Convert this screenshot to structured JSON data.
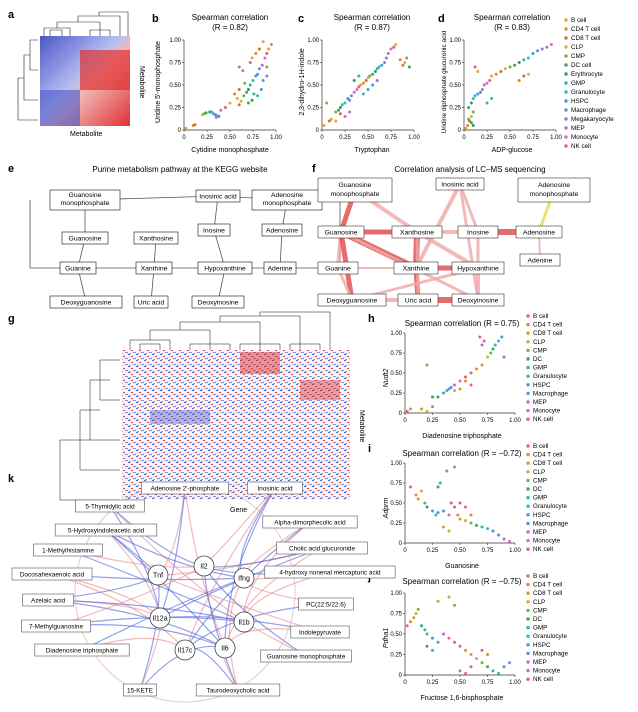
{
  "panels": {
    "a": {
      "letter": "a",
      "ylabel": "Metabolite",
      "xlabel": "Metabolite"
    },
    "b": {
      "letter": "b",
      "title": "Spearman correlation",
      "subtitle": "(R = 0.82)",
      "xlabel": "Cytidine monophosphate",
      "ylabel": "Uridine 5'-monophosphate"
    },
    "c": {
      "letter": "c",
      "title": "Spearman correlation",
      "subtitle": "(R = 0.87)",
      "xlabel": "Tryptophan",
      "ylabel": "2,3-dihydro-1H-indole"
    },
    "d": {
      "letter": "d",
      "title": "Spearman correlation",
      "subtitle": "(R = 0.83)",
      "xlabel": "ADP-glucose",
      "ylabel": "Uridine diphosphate glucuronic acid"
    },
    "e": {
      "letter": "e",
      "title": "Purine metabolism pathway at the KEGG website"
    },
    "f": {
      "letter": "f",
      "title": "Correlation analysis of LC–MS sequencing"
    },
    "g": {
      "letter": "g",
      "ylabel": "Metabolite",
      "xlabel": "Gene"
    },
    "h": {
      "letter": "h",
      "title": "Spearman correlation (R = 0.75)",
      "xlabel": "Diadenosine triphosphate",
      "ylabel": "Nudt2"
    },
    "i": {
      "letter": "i",
      "title": "Spearman correlation (R = −0.72)",
      "xlabel": "Guanosine",
      "ylabel": "Adprm"
    },
    "j": {
      "letter": "j",
      "title": "Spearman correlation (R = −0.75)",
      "xlabel": "Fructose 1,6-bisphosphate",
      "ylabel": "Pdha1"
    },
    "k": {
      "letter": "k"
    }
  },
  "ticks": {
    "b": {
      "x": [
        "0",
        "0.25",
        "0.50",
        "0.75",
        "1.00"
      ],
      "y": [
        "0",
        "0.25",
        "0.50",
        "0.75",
        "1.00"
      ]
    },
    "c": {
      "x": [
        "0",
        "0.25",
        "0.50",
        "0.75",
        "1.00"
      ],
      "y": [
        "0",
        "0.25",
        "0.50",
        "0.75",
        "1.00"
      ]
    },
    "d": {
      "x": [
        "0",
        "0.25",
        "0.50",
        "0.75",
        "1.00"
      ],
      "y": [
        "0",
        "0.25",
        "0.50",
        "0.75",
        "1.00"
      ]
    },
    "h": {
      "x": [
        "0",
        "0.25",
        "0.50",
        "0.75",
        "1.00"
      ],
      "y": [
        "0",
        "0.25",
        "0.50",
        "0.75",
        "1.00"
      ]
    },
    "i": {
      "x": [
        "0",
        "0.25",
        "0.50",
        "0.75",
        "1.00"
      ],
      "y": [
        "0",
        "0.25",
        "0.50",
        "0.75",
        "1.00"
      ]
    },
    "j": {
      "x": [
        "0",
        "0.25",
        "0.50",
        "0.75",
        "1.00"
      ],
      "y": [
        "0",
        "0.25",
        "0.50",
        "0.75",
        "1.00"
      ]
    }
  },
  "legend_bd": [
    "B cell",
    "CD4 T cell",
    "CD8 T cell",
    "CLP",
    "CMP",
    "DC cell",
    "Erythrocyte",
    "GMP",
    "Granulocyte",
    "HSPC",
    "Macrophage",
    "Megakaryocyte",
    "MEP",
    "Monocyte",
    "NK cell"
  ],
  "legend_colors_bd": [
    "#e8a33c",
    "#e0882a",
    "#c9762b",
    "#d8b23a",
    "#6fb44a",
    "#3aa856",
    "#2e9a6c",
    "#39b3a3",
    "#38b6c6",
    "#3c9fd8",
    "#5f8ee0",
    "#8e7ad8",
    "#b66ed8",
    "#e06ab2",
    "#e0607a"
  ],
  "legend_hij": [
    "B cell",
    "CD4 T cell",
    "CD8 T cell",
    "CLP",
    "CMP",
    "DC",
    "GMP",
    "Granulocyte",
    "HSPC",
    "Macrophage",
    "MEP",
    "Monocyte",
    "NK cell"
  ],
  "legend_colors_hij": [
    "#e06a6a",
    "#e08a3a",
    "#d59c2e",
    "#c8b23a",
    "#6fb44a",
    "#3aa856",
    "#39b3a3",
    "#38b6c6",
    "#3c9fd8",
    "#5f8ee0",
    "#b66ed8",
    "#e06ab2",
    "#e0607a"
  ],
  "pathway_e": {
    "nodes": [
      "Guanosine monophosphate",
      "Guanosine",
      "Guanine",
      "Deoxyguanosine",
      "Xanthosine",
      "Xanthine",
      "Uric acid",
      "Inosinic acid",
      "Inosine",
      "Hypoxanthine",
      "Deoxyinosine",
      "Adenosine monophosphate",
      "Adenosine",
      "Adenine"
    ]
  },
  "network_f": {
    "nodes": [
      "Guanosine monophosphate",
      "Inosinic acid",
      "Adenosine monophosphate",
      "Guanosine",
      "Xanthosine",
      "Inosine",
      "Adenosine",
      "Guanine",
      "Xanthine",
      "Hypoxanthine",
      "Adenine",
      "Deoxyguanosine",
      "Uric acid",
      "Deoxyinosine"
    ]
  },
  "network_k": {
    "genes": [
      "Tnf",
      "Il2",
      "Ifng",
      "Il12a",
      "Il1b",
      "Il17c",
      "Il6"
    ],
    "metabolites": [
      "Adenosine 2'-phosphate",
      "Inosinic acid",
      "5-Thymidylic acid",
      "5-Hydroxyindoleacetic acid",
      "Alpha-dimorphecolic acid",
      "1-Methylhistamine",
      "Cholic acid glucuronide",
      "Docosahexaenoic acid",
      "4-hydroxy nonenal mercapturic acid",
      "Azelaic acid",
      "PC(22:5/22:6)",
      "7-Methylguanosine",
      "Indolepyruvate",
      "Diadenosine triphosphate",
      "Guanosine monophosphate",
      "15-KETE",
      "Taurodeoxycholic acid"
    ]
  },
  "chart_data": [
    {
      "panel": "b",
      "type": "scatter",
      "title": "Spearman correlation",
      "subtitle": "(R = 0.82)",
      "xlabel": "Cytidine monophosphate",
      "ylabel": "Uridine 5'-monophosphate",
      "xlim": [
        0,
        1
      ],
      "ylim": [
        0,
        1
      ],
      "points": [
        [
          0.02,
          0.02
        ],
        [
          0.1,
          0.05
        ],
        [
          0.12,
          0.06
        ],
        [
          0.2,
          0.17
        ],
        [
          0.22,
          0.18
        ],
        [
          0.24,
          0.19
        ],
        [
          0.28,
          0.2
        ],
        [
          0.3,
          0.2
        ],
        [
          0.32,
          0.18
        ],
        [
          0.34,
          0.17
        ],
        [
          0.36,
          0.16
        ],
        [
          0.38,
          0.15
        ],
        [
          0.35,
          0.14
        ],
        [
          0.4,
          0.22
        ],
        [
          0.45,
          0.25
        ],
        [
          0.5,
          0.3
        ],
        [
          0.55,
          0.4
        ],
        [
          0.6,
          0.45
        ],
        [
          0.62,
          0.32
        ],
        [
          0.65,
          0.38
        ],
        [
          0.68,
          0.42
        ],
        [
          0.7,
          0.45
        ],
        [
          0.72,
          0.5
        ],
        [
          0.75,
          0.55
        ],
        [
          0.78,
          0.6
        ],
        [
          0.8,
          0.62
        ],
        [
          0.82,
          0.68
        ],
        [
          0.85,
          0.72
        ],
        [
          0.88,
          0.8
        ],
        [
          0.9,
          0.85
        ],
        [
          0.92,
          0.9
        ],
        [
          0.95,
          0.95
        ],
        [
          0.6,
          0.28
        ],
        [
          0.58,
          0.35
        ],
        [
          0.66,
          0.52
        ],
        [
          0.7,
          0.3
        ],
        [
          0.74,
          0.33
        ],
        [
          0.76,
          0.4
        ],
        [
          0.8,
          0.38
        ],
        [
          0.84,
          0.45
        ],
        [
          0.86,
          0.55
        ],
        [
          0.9,
          0.6
        ],
        [
          0.6,
          0.7
        ],
        [
          0.64,
          0.66
        ],
        [
          0.72,
          0.75
        ],
        [
          0.74,
          0.8
        ],
        [
          0.78,
          0.85
        ],
        [
          0.82,
          0.9
        ],
        [
          0.86,
          0.98
        ],
        [
          0.9,
          0.7
        ]
      ]
    },
    {
      "panel": "c",
      "type": "scatter",
      "title": "Spearman correlation",
      "subtitle": "(R = 0.87)",
      "xlabel": "Tryptophan",
      "ylabel": "2,3-dihydro-1H-indole",
      "xlim": [
        0,
        1
      ],
      "ylim": [
        0,
        1
      ],
      "points": [
        [
          0.02,
          0.05
        ],
        [
          0.05,
          0.3
        ],
        [
          0.08,
          0.1
        ],
        [
          0.1,
          0.12
        ],
        [
          0.15,
          0.2
        ],
        [
          0.18,
          0.22
        ],
        [
          0.2,
          0.25
        ],
        [
          0.22,
          0.28
        ],
        [
          0.25,
          0.3
        ],
        [
          0.28,
          0.35
        ],
        [
          0.3,
          0.33
        ],
        [
          0.32,
          0.38
        ],
        [
          0.35,
          0.42
        ],
        [
          0.38,
          0.45
        ],
        [
          0.4,
          0.48
        ],
        [
          0.42,
          0.5
        ],
        [
          0.45,
          0.52
        ],
        [
          0.48,
          0.55
        ],
        [
          0.5,
          0.58
        ],
        [
          0.52,
          0.6
        ],
        [
          0.55,
          0.62
        ],
        [
          0.58,
          0.65
        ],
        [
          0.6,
          0.68
        ],
        [
          0.62,
          0.7
        ],
        [
          0.65,
          0.72
        ],
        [
          0.68,
          0.75
        ],
        [
          0.7,
          0.8
        ],
        [
          0.72,
          0.85
        ],
        [
          0.75,
          0.9
        ],
        [
          0.78,
          0.92
        ],
        [
          0.8,
          0.95
        ],
        [
          0.85,
          0.78
        ],
        [
          0.88,
          0.72
        ],
        [
          0.9,
          0.75
        ],
        [
          0.92,
          0.8
        ],
        [
          0.95,
          0.7
        ],
        [
          0.35,
          0.55
        ],
        [
          0.4,
          0.6
        ],
        [
          0.45,
          0.4
        ],
        [
          0.5,
          0.45
        ],
        [
          0.55,
          0.5
        ],
        [
          0.6,
          0.55
        ],
        [
          0.3,
          0.2
        ],
        [
          0.25,
          0.15
        ],
        [
          0.2,
          0.18
        ],
        [
          0.15,
          0.1
        ]
      ]
    },
    {
      "panel": "d",
      "type": "scatter",
      "title": "Spearman correlation",
      "subtitle": "(R = 0.83)",
      "xlabel": "ADP-glucose",
      "ylabel": "Uridine diphosphate glucuronic acid",
      "xlim": [
        0,
        1
      ],
      "ylim": [
        0,
        1
      ],
      "points": [
        [
          0.02,
          0.02
        ],
        [
          0.04,
          0.05
        ],
        [
          0.06,
          0.1
        ],
        [
          0.08,
          0.15
        ],
        [
          0.1,
          0.2
        ],
        [
          0.05,
          0.25
        ],
        [
          0.08,
          0.3
        ],
        [
          0.1,
          0.35
        ],
        [
          0.12,
          0.38
        ],
        [
          0.15,
          0.4
        ],
        [
          0.18,
          0.42
        ],
        [
          0.2,
          0.45
        ],
        [
          0.22,
          0.5
        ],
        [
          0.25,
          0.52
        ],
        [
          0.28,
          0.55
        ],
        [
          0.3,
          0.6
        ],
        [
          0.35,
          0.62
        ],
        [
          0.4,
          0.65
        ],
        [
          0.45,
          0.68
        ],
        [
          0.5,
          0.7
        ],
        [
          0.55,
          0.72
        ],
        [
          0.6,
          0.75
        ],
        [
          0.65,
          0.78
        ],
        [
          0.7,
          0.8
        ],
        [
          0.75,
          0.85
        ],
        [
          0.8,
          0.88
        ],
        [
          0.85,
          0.9
        ],
        [
          0.9,
          0.92
        ],
        [
          0.95,
          0.95
        ],
        [
          0.12,
          0.7
        ],
        [
          0.15,
          0.65
        ],
        [
          0.6,
          0.55
        ],
        [
          0.65,
          0.6
        ],
        [
          0.7,
          0.62
        ],
        [
          0.05,
          0.12
        ],
        [
          0.08,
          0.08
        ],
        [
          0.1,
          0.05
        ],
        [
          0.25,
          0.3
        ],
        [
          0.3,
          0.35
        ]
      ]
    },
    {
      "panel": "h",
      "type": "scatter",
      "title": "Spearman correlation (R = 0.75)",
      "xlabel": "Diadenosine triphosphate",
      "ylabel": "Nudt2",
      "xlim": [
        0,
        1
      ],
      "ylim": [
        0,
        1
      ],
      "points": [
        [
          0.02,
          0.02
        ],
        [
          0.05,
          0.05
        ],
        [
          0.15,
          0.05
        ],
        [
          0.2,
          0.02
        ],
        [
          0.25,
          0.08
        ],
        [
          0.3,
          0.2
        ],
        [
          0.35,
          0.25
        ],
        [
          0.38,
          0.28
        ],
        [
          0.4,
          0.3
        ],
        [
          0.42,
          0.32
        ],
        [
          0.45,
          0.35
        ],
        [
          0.5,
          0.4
        ],
        [
          0.55,
          0.45
        ],
        [
          0.6,
          0.5
        ],
        [
          0.65,
          0.55
        ],
        [
          0.7,
          0.6
        ],
        [
          0.75,
          0.7
        ],
        [
          0.78,
          0.75
        ],
        [
          0.8,
          0.8
        ],
        [
          0.82,
          0.85
        ],
        [
          0.85,
          0.9
        ],
        [
          0.88,
          0.95
        ],
        [
          0.9,
          0.7
        ],
        [
          0.7,
          0.85
        ],
        [
          0.72,
          0.9
        ],
        [
          0.68,
          0.95
        ],
        [
          0.6,
          0.35
        ],
        [
          0.55,
          0.4
        ],
        [
          0.5,
          0.3
        ],
        [
          0.45,
          0.28
        ],
        [
          0.2,
          0.6
        ],
        [
          0.25,
          0.2
        ]
      ]
    },
    {
      "panel": "i",
      "type": "scatter",
      "title": "Spearman correlation (R = −0.72)",
      "xlabel": "Guanosine",
      "ylabel": "Adprm",
      "xlim": [
        0,
        1
      ],
      "ylim": [
        0,
        1
      ],
      "points": [
        [
          0.05,
          0.7
        ],
        [
          0.1,
          0.6
        ],
        [
          0.12,
          0.55
        ],
        [
          0.15,
          0.65
        ],
        [
          0.18,
          0.5
        ],
        [
          0.2,
          0.45
        ],
        [
          0.25,
          0.4
        ],
        [
          0.28,
          0.35
        ],
        [
          0.3,
          0.38
        ],
        [
          0.35,
          0.4
        ],
        [
          0.38,
          0.9
        ],
        [
          0.4,
          0.35
        ],
        [
          0.42,
          0.5
        ],
        [
          0.45,
          0.45
        ],
        [
          0.48,
          0.35
        ],
        [
          0.5,
          0.3
        ],
        [
          0.55,
          0.28
        ],
        [
          0.6,
          0.25
        ],
        [
          0.65,
          0.22
        ],
        [
          0.7,
          0.2
        ],
        [
          0.75,
          0.18
        ],
        [
          0.8,
          0.15
        ],
        [
          0.85,
          0.1
        ],
        [
          0.9,
          0.05
        ],
        [
          0.95,
          0.02
        ],
        [
          0.5,
          0.5
        ],
        [
          0.55,
          0.45
        ],
        [
          0.6,
          0.35
        ],
        [
          0.35,
          0.2
        ],
        [
          0.4,
          0.15
        ],
        [
          0.45,
          0.95
        ],
        [
          0.3,
          0.7
        ],
        [
          0.32,
          0.75
        ]
      ]
    },
    {
      "panel": "j",
      "type": "scatter",
      "title": "Spearman correlation (R = −0.75)",
      "xlabel": "Fructose 1,6-bisphosphate",
      "ylabel": "Pdha1",
      "xlim": [
        0,
        1
      ],
      "ylim": [
        0,
        1
      ],
      "points": [
        [
          0.02,
          0.6
        ],
        [
          0.05,
          0.65
        ],
        [
          0.08,
          0.7
        ],
        [
          0.1,
          0.75
        ],
        [
          0.12,
          0.8
        ],
        [
          0.15,
          0.6
        ],
        [
          0.18,
          0.55
        ],
        [
          0.2,
          0.5
        ],
        [
          0.25,
          0.45
        ],
        [
          0.3,
          0.4
        ],
        [
          0.35,
          0.5
        ],
        [
          0.4,
          0.45
        ],
        [
          0.45,
          0.4
        ],
        [
          0.5,
          0.35
        ],
        [
          0.55,
          0.3
        ],
        [
          0.6,
          0.25
        ],
        [
          0.65,
          0.2
        ],
        [
          0.7,
          0.15
        ],
        [
          0.75,
          0.1
        ],
        [
          0.8,
          0.05
        ],
        [
          0.85,
          0.02
        ],
        [
          0.9,
          0.1
        ],
        [
          0.95,
          0.15
        ],
        [
          0.5,
          0.05
        ],
        [
          0.55,
          0.02
        ],
        [
          0.6,
          0.1
        ],
        [
          0.7,
          0.3
        ],
        [
          0.75,
          0.25
        ],
        [
          0.3,
          0.9
        ],
        [
          0.4,
          0.95
        ],
        [
          0.45,
          0.85
        ],
        [
          0.2,
          0.35
        ],
        [
          0.25,
          0.3
        ]
      ]
    }
  ]
}
